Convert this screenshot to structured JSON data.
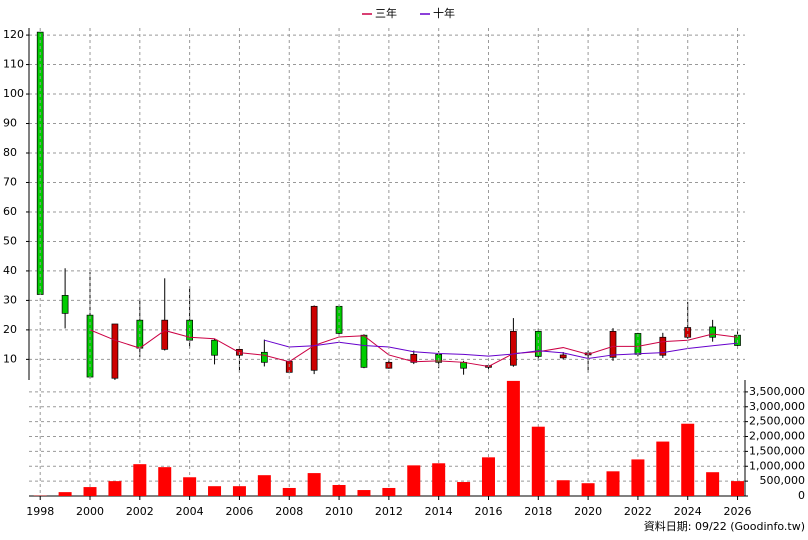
{
  "chart_data": [
    {
      "type": "candlestick",
      "x": [
        1998,
        1999,
        2000,
        2001,
        2002,
        2003,
        2004,
        2005,
        2006,
        2007,
        2008,
        2009,
        2010,
        2011,
        2012,
        2013,
        2014,
        2015,
        2016,
        2017,
        2018,
        2019,
        2020,
        2021,
        2022,
        2023,
        2024,
        2025,
        2026
      ],
      "open": [
        121,
        31.7,
        25,
        3.6,
        23.3,
        13.4,
        23.3,
        16.5,
        11.4,
        12.4,
        5.6,
        6.3,
        28,
        18.2,
        7,
        9,
        11.7,
        9,
        7.3,
        8,
        19.5,
        10.5,
        11.5,
        10.7,
        18.8,
        11.4,
        17.5,
        21,
        18.2
      ],
      "high": [
        121,
        40.9,
        39.6,
        22,
        30,
        37.5,
        34.8,
        17,
        14.5,
        16.7,
        10,
        28.3,
        28.3,
        18.5,
        10,
        13,
        12.8,
        9.5,
        8.5,
        24,
        20.3,
        12.5,
        13,
        20.6,
        19,
        19,
        29.5,
        23.4,
        19.5
      ],
      "low": [
        32,
        20.5,
        3.9,
        3,
        10.7,
        13,
        14,
        8.3,
        5.6,
        7.6,
        5.3,
        5,
        18,
        7,
        6.8,
        8.4,
        7,
        4.8,
        6.6,
        7.5,
        9.6,
        10,
        5.5,
        9.5,
        11,
        10.5,
        17,
        16,
        14
      ],
      "close": [
        32,
        25.6,
        4,
        22,
        13.8,
        23.3,
        16.5,
        11.4,
        13.4,
        9,
        9.3,
        28,
        18.8,
        7.3,
        9,
        11.7,
        9,
        7,
        7.9,
        19.5,
        11,
        11.5,
        12.2,
        19.5,
        11.7,
        17.5,
        20.8,
        17.5,
        14.7
      ],
      "up_color": "#cc0000",
      "down_color": "#00cc00",
      "series": [
        {
          "name": "三年",
          "color": "#cc0044",
          "values": [
            null,
            null,
            20,
            16.5,
            13.8,
            19.8,
            17.5,
            17,
            12.3,
            11.4,
            9.2,
            14.7,
            17.6,
            18,
            11.5,
            9.2,
            9.5,
            9,
            7.6,
            12,
            12.6,
            14,
            11.7,
            14.4,
            14.4,
            16,
            16.5,
            18.6,
            17.5
          ]
        },
        {
          "name": "十年",
          "color": "#6600cc",
          "values": [
            null,
            null,
            null,
            null,
            null,
            null,
            null,
            null,
            null,
            16.5,
            14.2,
            14.6,
            15.8,
            14.7,
            14.2,
            12.6,
            12,
            11.7,
            11.1,
            11.8,
            12.9,
            12.2,
            10.3,
            11.5,
            11.9,
            12.3,
            13.7,
            14.6,
            15.5
          ]
        }
      ],
      "legend": "top",
      "grid": true,
      "xlim": [
        1997.55,
        2026.3
      ],
      "ylim": [
        3,
        122.4
      ],
      "yticks": [
        10,
        20,
        30,
        40,
        50,
        60,
        70,
        80,
        90,
        100,
        110,
        120
      ]
    },
    {
      "type": "bar",
      "x": [
        1998,
        1999,
        2000,
        2001,
        2002,
        2003,
        2004,
        2005,
        2006,
        2007,
        2008,
        2009,
        2010,
        2011,
        2012,
        2013,
        2014,
        2015,
        2016,
        2017,
        2018,
        2019,
        2020,
        2021,
        2022,
        2023,
        2024,
        2025,
        2026
      ],
      "values": [
        10000,
        130000,
        300000,
        500000,
        1070000,
        970000,
        630000,
        330000,
        330000,
        700000,
        270000,
        770000,
        370000,
        200000,
        270000,
        1030000,
        1100000,
        470000,
        1300000,
        3870000,
        2330000,
        530000,
        430000,
        830000,
        1230000,
        1830000,
        2430000,
        800000,
        500000
      ],
      "color": "#ff0000",
      "grid": true,
      "xlim": [
        1997.55,
        2026.3
      ],
      "xticks": [
        1998,
        2000,
        2002,
        2004,
        2006,
        2008,
        2010,
        2012,
        2014,
        2016,
        2018,
        2020,
        2022,
        2024,
        2026
      ],
      "ylim": [
        0,
        3900000
      ],
      "yticks": [
        0,
        {
          "value": 500000,
          "label": "500,000"
        },
        {
          "value": 1000000,
          "label": "1,000,000"
        },
        {
          "value": 1500000,
          "label": "1,500,000"
        },
        {
          "value": 2000000,
          "label": "2,000,000"
        },
        {
          "value": 2500000,
          "label": "2,500,000"
        },
        {
          "value": 3000000,
          "label": "3,000,000"
        },
        {
          "value": 3500000,
          "label": "3,500,000"
        }
      ]
    }
  ],
  "footer": "資料日期: 09/22 (Goodinfo.tw)"
}
